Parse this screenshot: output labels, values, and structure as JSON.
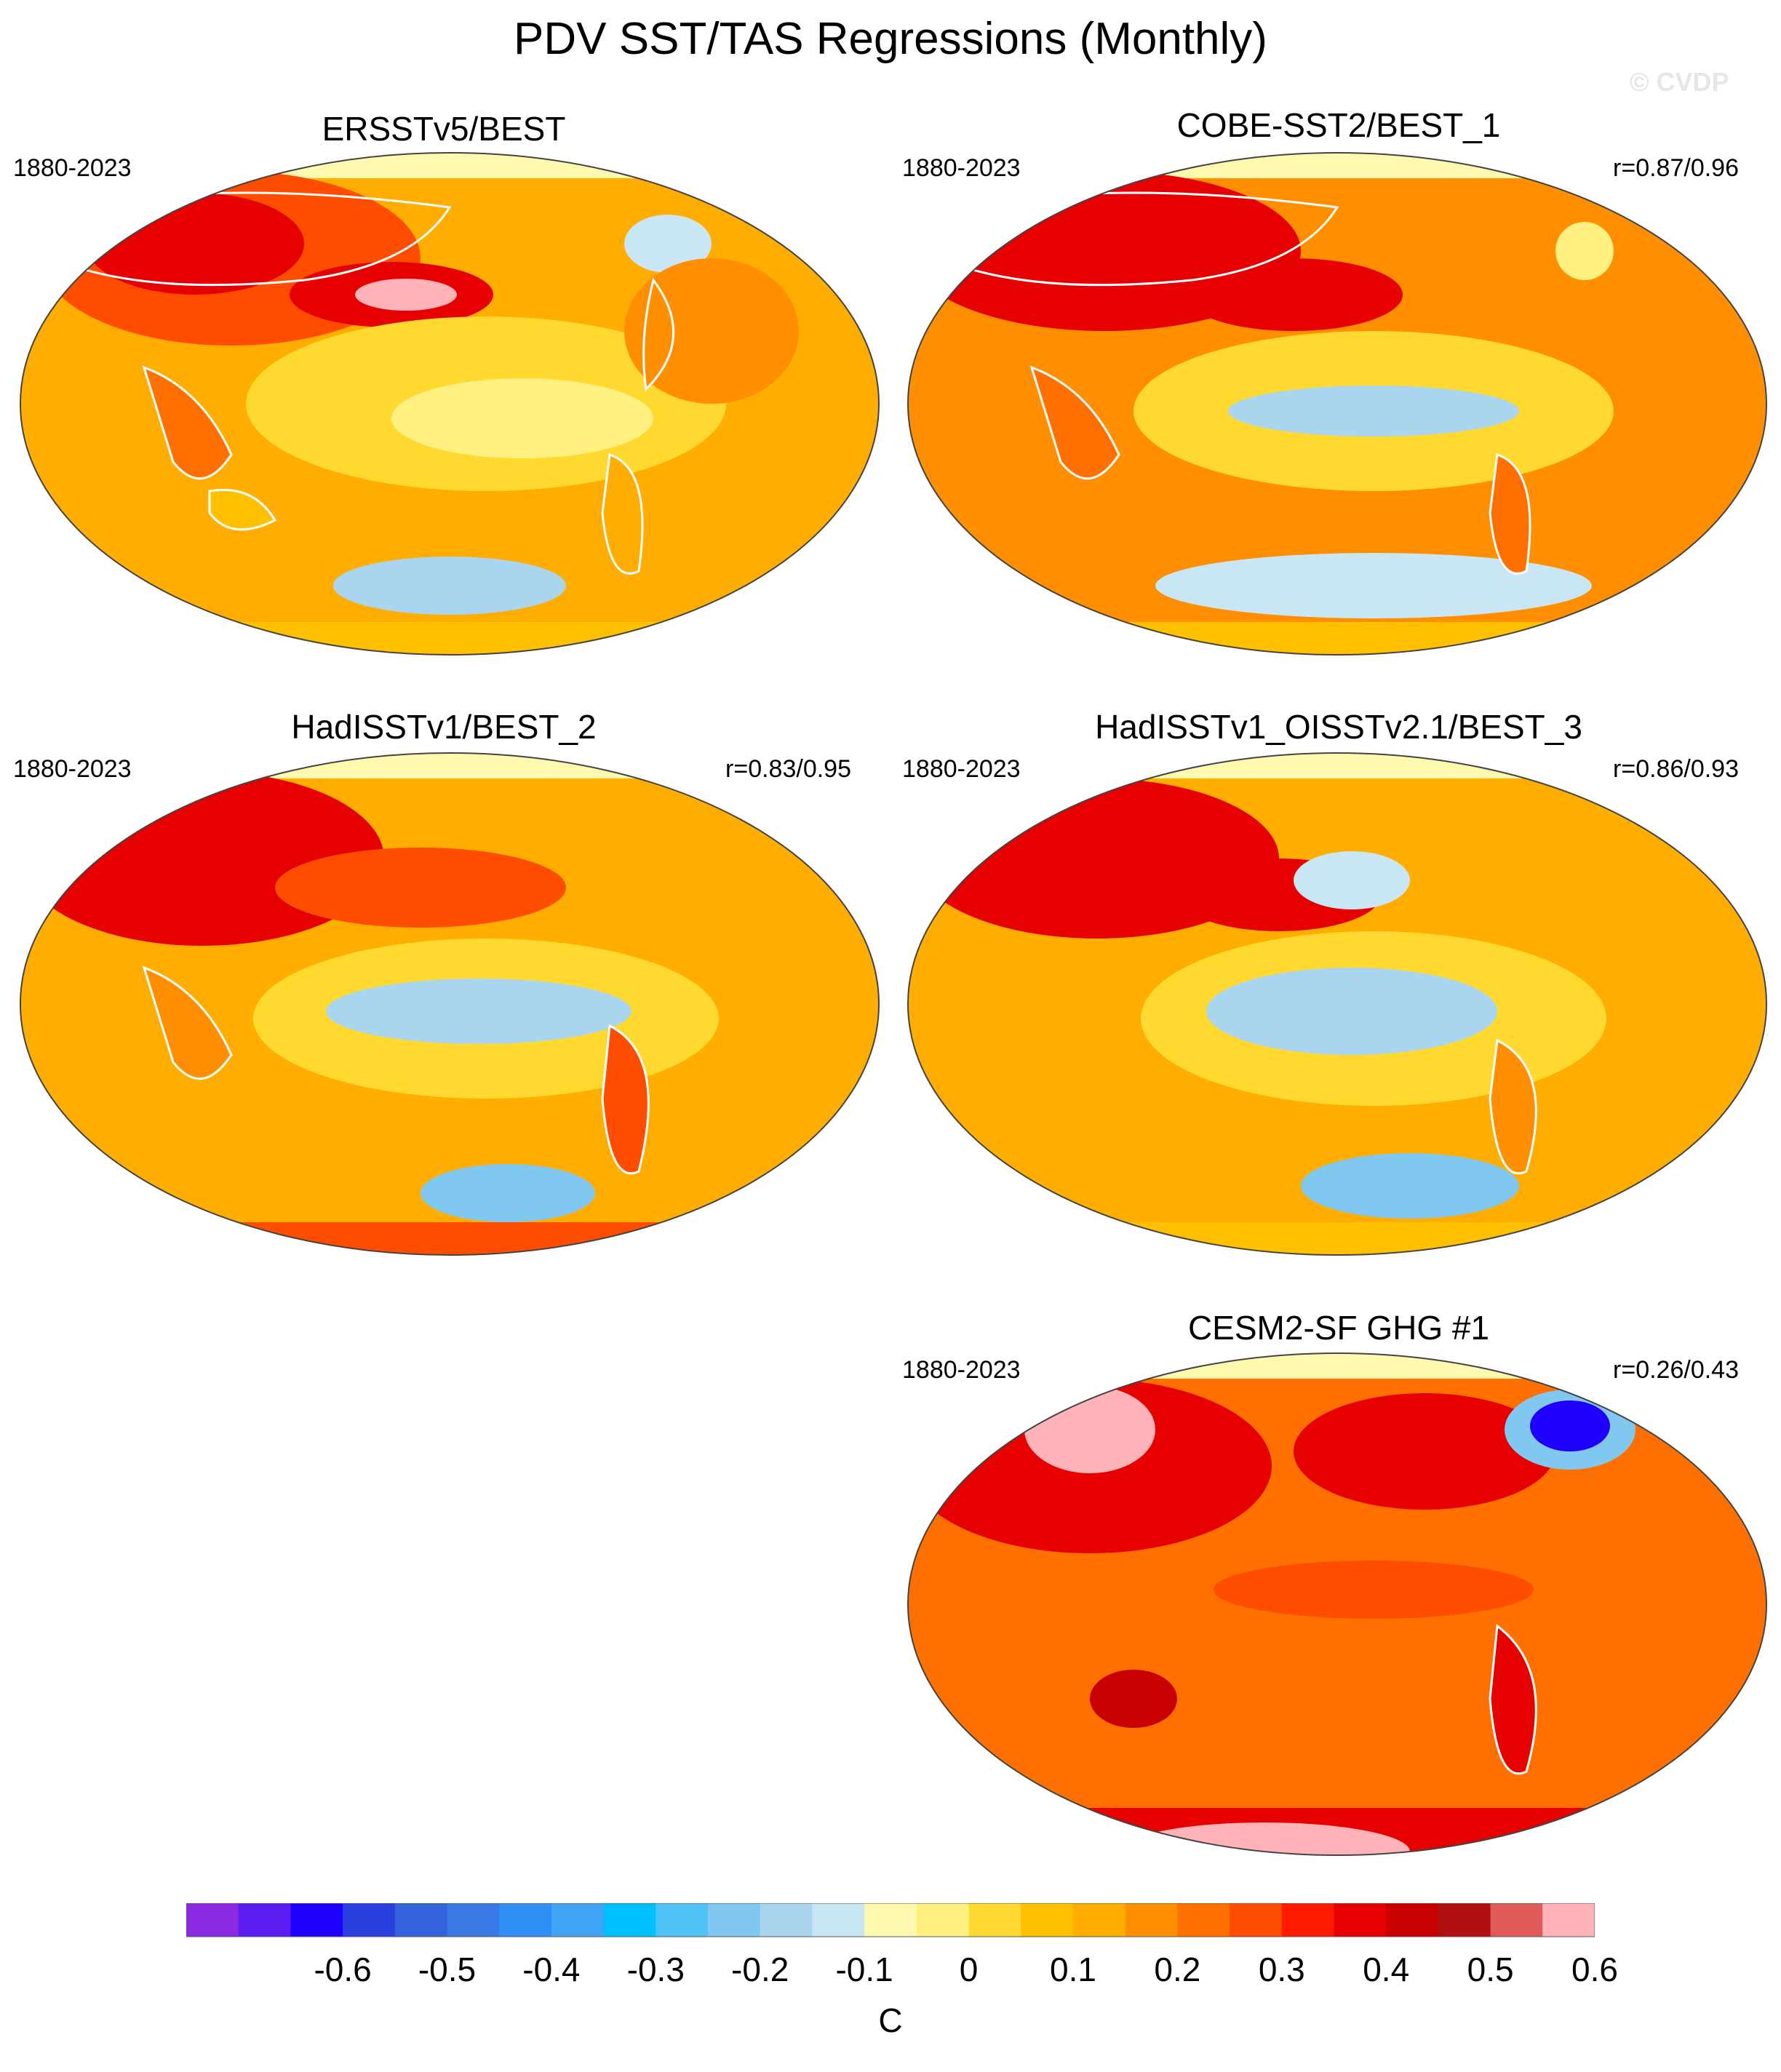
{
  "title": "PDV SST/TAS Regressions (Monthly)",
  "watermark": "© CVDP",
  "panels": [
    {
      "id": "ersst",
      "title": "ERSSTv5/BEST",
      "period": "1880-2023",
      "r": ""
    },
    {
      "id": "cobe",
      "title": "COBE-SST2/BEST_1",
      "period": "1880-2023",
      "r": "r=0.87/0.96"
    },
    {
      "id": "hadisst",
      "title": "HadISSTv1/BEST_2",
      "period": "1880-2023",
      "r": "r=0.83/0.95"
    },
    {
      "id": "hadoisst",
      "title": "HadISSTv1_OISSTv2.1/BEST_3",
      "period": "1880-2023",
      "r": "r=0.86/0.93"
    },
    {
      "id": "cesm",
      "title": "CESM2-SF GHG #1",
      "period": "1880-2023",
      "r": "r=0.26/0.43"
    }
  ],
  "colorbar": {
    "unit": "C",
    "ticks": [
      "-0.6",
      "-0.5",
      "-0.4",
      "-0.3",
      "-0.2",
      "-0.1",
      "0",
      "0.1",
      "0.2",
      "0.3",
      "0.4",
      "0.5",
      "0.6"
    ],
    "colors": [
      "#8a2be2",
      "#5c1ef0",
      "#1f00ff",
      "#2a3fe0",
      "#3563dc",
      "#3a78e6",
      "#2f8ff5",
      "#3ea4f5",
      "#00bfff",
      "#4fc3f7",
      "#80c8ef",
      "#a9d5ef",
      "#c9e6f5",
      "#fff9b0",
      "#fff080",
      "#ffd930",
      "#ffc000",
      "#ffad00",
      "#ff8f00",
      "#ff7000",
      "#ff4d00",
      "#ff1a00",
      "#e60000",
      "#c80000",
      "#b01010",
      "#e05a5a",
      "#ffb3b8"
    ]
  }
}
